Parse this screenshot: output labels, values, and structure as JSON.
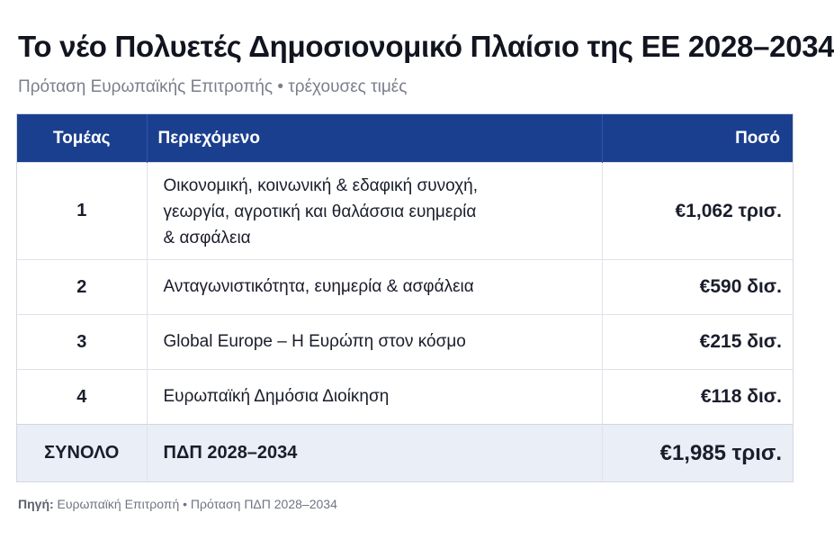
{
  "title": "Το νέο Πολυετές Δημοσιονομικό Πλαίσιο της ΕΕ 2028–2034",
  "subtitle": "Πρόταση Ευρωπαϊκής Επιτροπής • τρέχουσες τιμές",
  "table": {
    "headers": [
      "Τομέας",
      "Περιεχόμενο",
      "Ποσό"
    ],
    "rows": [
      {
        "sector": "1",
        "content_lines": [
          "Οικονομική, κοινωνική & εδαφική συνοχή,",
          "γεωργία, αγροτική και θαλάσσια ευημερία",
          "& ασφάλεια"
        ],
        "amount": "€1,062 τρισ."
      },
      {
        "sector": "2",
        "content": "Ανταγωνιστικότητα, ευημερία & ασφάλεια",
        "amount": "€590 δισ."
      },
      {
        "sector": "3",
        "content": "Global Europe – Η Ευρώπη στον κόσμο",
        "amount": "€215 δισ."
      },
      {
        "sector": "4",
        "content": "Ευρωπαϊκή Δημόσια Διοίκηση",
        "amount": "€118 δισ."
      }
    ],
    "total": {
      "label": "ΣΥΝΟΛΟ",
      "content": "ΠΔΠ 2028–2034",
      "amount": "€1,985 τρισ."
    }
  },
  "footer": {
    "source_label": "Πηγή:",
    "source_text": " Ευρωπαϊκή Επιτροπή • Πρόταση ΠΔΠ 2028–2034"
  },
  "colors": {
    "header_bg": "#1b3f8f",
    "total_bg": "#e9eef7",
    "title": "#121420",
    "subtitle": "#7a7f8c"
  }
}
